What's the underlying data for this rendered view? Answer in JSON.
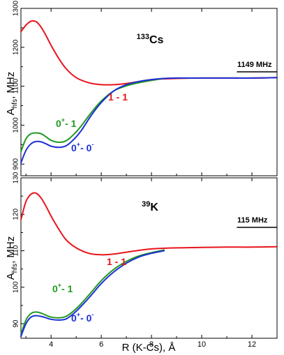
{
  "chart_data": [
    {
      "type": "line",
      "species": "133",
      "species_el": "Cs",
      "ylabel_main": "A",
      "ylabel_sub": "hfs",
      "ylabel_unit": ", MHz",
      "xlim": [
        2.8,
        13
      ],
      "ylim": [
        870,
        1300
      ],
      "yticks": [
        900,
        1000,
        1100,
        1200,
        1300
      ],
      "reference_label": "1149 MHz",
      "reference_line": {
        "x_start": 11.4,
        "x_end": 13
      },
      "colors": {
        "1-1": "#e8141c",
        "0+-1": "#1f9a1f",
        "0+-0-": "#1c2fd6"
      },
      "series": [
        {
          "key": "1-1",
          "label": "1 - 1",
          "x": [
            2.8,
            3.0,
            3.2,
            3.4,
            3.6,
            3.8,
            4.0,
            4.3,
            4.6,
            5.0,
            5.5,
            6.0,
            6.5,
            7.0,
            7.5,
            8.0,
            9.0,
            10.0,
            11.0,
            12.0,
            13.0
          ],
          "y": [
            1240,
            1257,
            1267,
            1266,
            1252,
            1230,
            1205,
            1172,
            1145,
            1122,
            1109,
            1104,
            1104,
            1107,
            1112,
            1117,
            1120,
            1121,
            1121,
            1121,
            1122
          ]
        },
        {
          "key": "0+-1",
          "label_main": "0",
          "label_sup": "+",
          "label_rest": "- 1",
          "x": [
            2.8,
            3.0,
            3.2,
            3.4,
            3.6,
            3.8,
            4.0,
            4.3,
            4.6,
            4.9,
            5.2,
            5.6,
            6.0,
            6.5,
            7.0,
            7.5,
            8.0,
            8.5
          ],
          "y": [
            932,
            965,
            978,
            980,
            978,
            970,
            961,
            956,
            960,
            976,
            998,
            1032,
            1062,
            1088,
            1101,
            1109,
            1115,
            1120
          ]
        },
        {
          "key": "0+-0-",
          "label_main": "0",
          "label_sup1": "+",
          "label_mid": "- 0",
          "label_sup2": "-",
          "x": [
            2.8,
            3.0,
            3.2,
            3.4,
            3.6,
            3.8,
            4.0,
            4.3,
            4.6,
            4.9,
            5.2,
            5.6,
            6.0,
            6.5,
            7.0,
            7.5,
            8.0,
            8.5,
            9.0,
            10.0,
            11.0,
            12.0,
            13.0
          ],
          "y": [
            903,
            935,
            952,
            958,
            957,
            952,
            946,
            943,
            947,
            963,
            986,
            1025,
            1058,
            1088,
            1104,
            1112,
            1117,
            1120,
            1121,
            1121,
            1121,
            1121,
            1122
          ]
        }
      ]
    },
    {
      "type": "line",
      "species": "39",
      "species_el": "K",
      "ylabel_main": "A",
      "ylabel_sub": "hfs",
      "ylabel_unit": ", MHz",
      "xlabel": "R (K-Cs), Å",
      "xlim": [
        2.8,
        13
      ],
      "ylim": [
        86,
        130
      ],
      "yticks": [
        90,
        100,
        110,
        120,
        130
      ],
      "xticks": [
        4,
        6,
        8,
        10,
        12
      ],
      "reference_label": "115 MHz",
      "reference_line": {
        "x_start": 11.4,
        "x_end": 13
      },
      "colors": {
        "1-1": "#e8141c",
        "0+-1": "#1f9a1f",
        "0+-0-": "#1c2fd6"
      },
      "series": [
        {
          "key": "1-1",
          "label": "1 - 1",
          "x": [
            2.8,
            3.0,
            3.2,
            3.4,
            3.6,
            3.8,
            4.0,
            4.3,
            4.6,
            5.0,
            5.5,
            6.0,
            6.5,
            7.0,
            7.5,
            8.0,
            9.0,
            10.0,
            11.0,
            12.0,
            13.0
          ],
          "y": [
            118.5,
            123.5,
            125.5,
            125.8,
            124.5,
            122.2,
            119.5,
            116.0,
            113.0,
            110.8,
            109.3,
            108.9,
            109.1,
            109.6,
            110.1,
            110.5,
            110.8,
            110.9,
            111.0,
            111.0,
            111.1
          ]
        },
        {
          "key": "0+-1",
          "label_main": "0",
          "label_sup": "+",
          "label_rest": "- 1",
          "x": [
            2.8,
            3.0,
            3.2,
            3.4,
            3.6,
            3.8,
            4.0,
            4.3,
            4.6,
            4.9,
            5.2,
            5.6,
            6.0,
            6.5,
            7.0,
            7.5,
            8.0,
            8.5
          ],
          "y": [
            87.0,
            91.0,
            92.8,
            93.2,
            92.9,
            92.3,
            91.8,
            91.6,
            92.0,
            93.5,
            95.5,
            98.6,
            101.8,
            104.9,
            107.1,
            108.6,
            109.5,
            110.2
          ]
        },
        {
          "key": "0+-0-",
          "label_main": "0",
          "label_sup1": "+",
          "label_mid": "- 0",
          "label_sup2": "-",
          "x": [
            2.8,
            3.0,
            3.2,
            3.4,
            3.6,
            3.8,
            4.0,
            4.3,
            4.6,
            4.9,
            5.2,
            5.6,
            6.0,
            6.5,
            7.0,
            7.5,
            8.0,
            8.5
          ],
          "y": [
            86.5,
            90.0,
            91.8,
            92.2,
            92.0,
            91.6,
            91.2,
            91.0,
            91.3,
            92.8,
            94.8,
            97.8,
            101.0,
            104.2,
            106.6,
            108.3,
            109.3,
            110.0
          ]
        }
      ]
    }
  ]
}
